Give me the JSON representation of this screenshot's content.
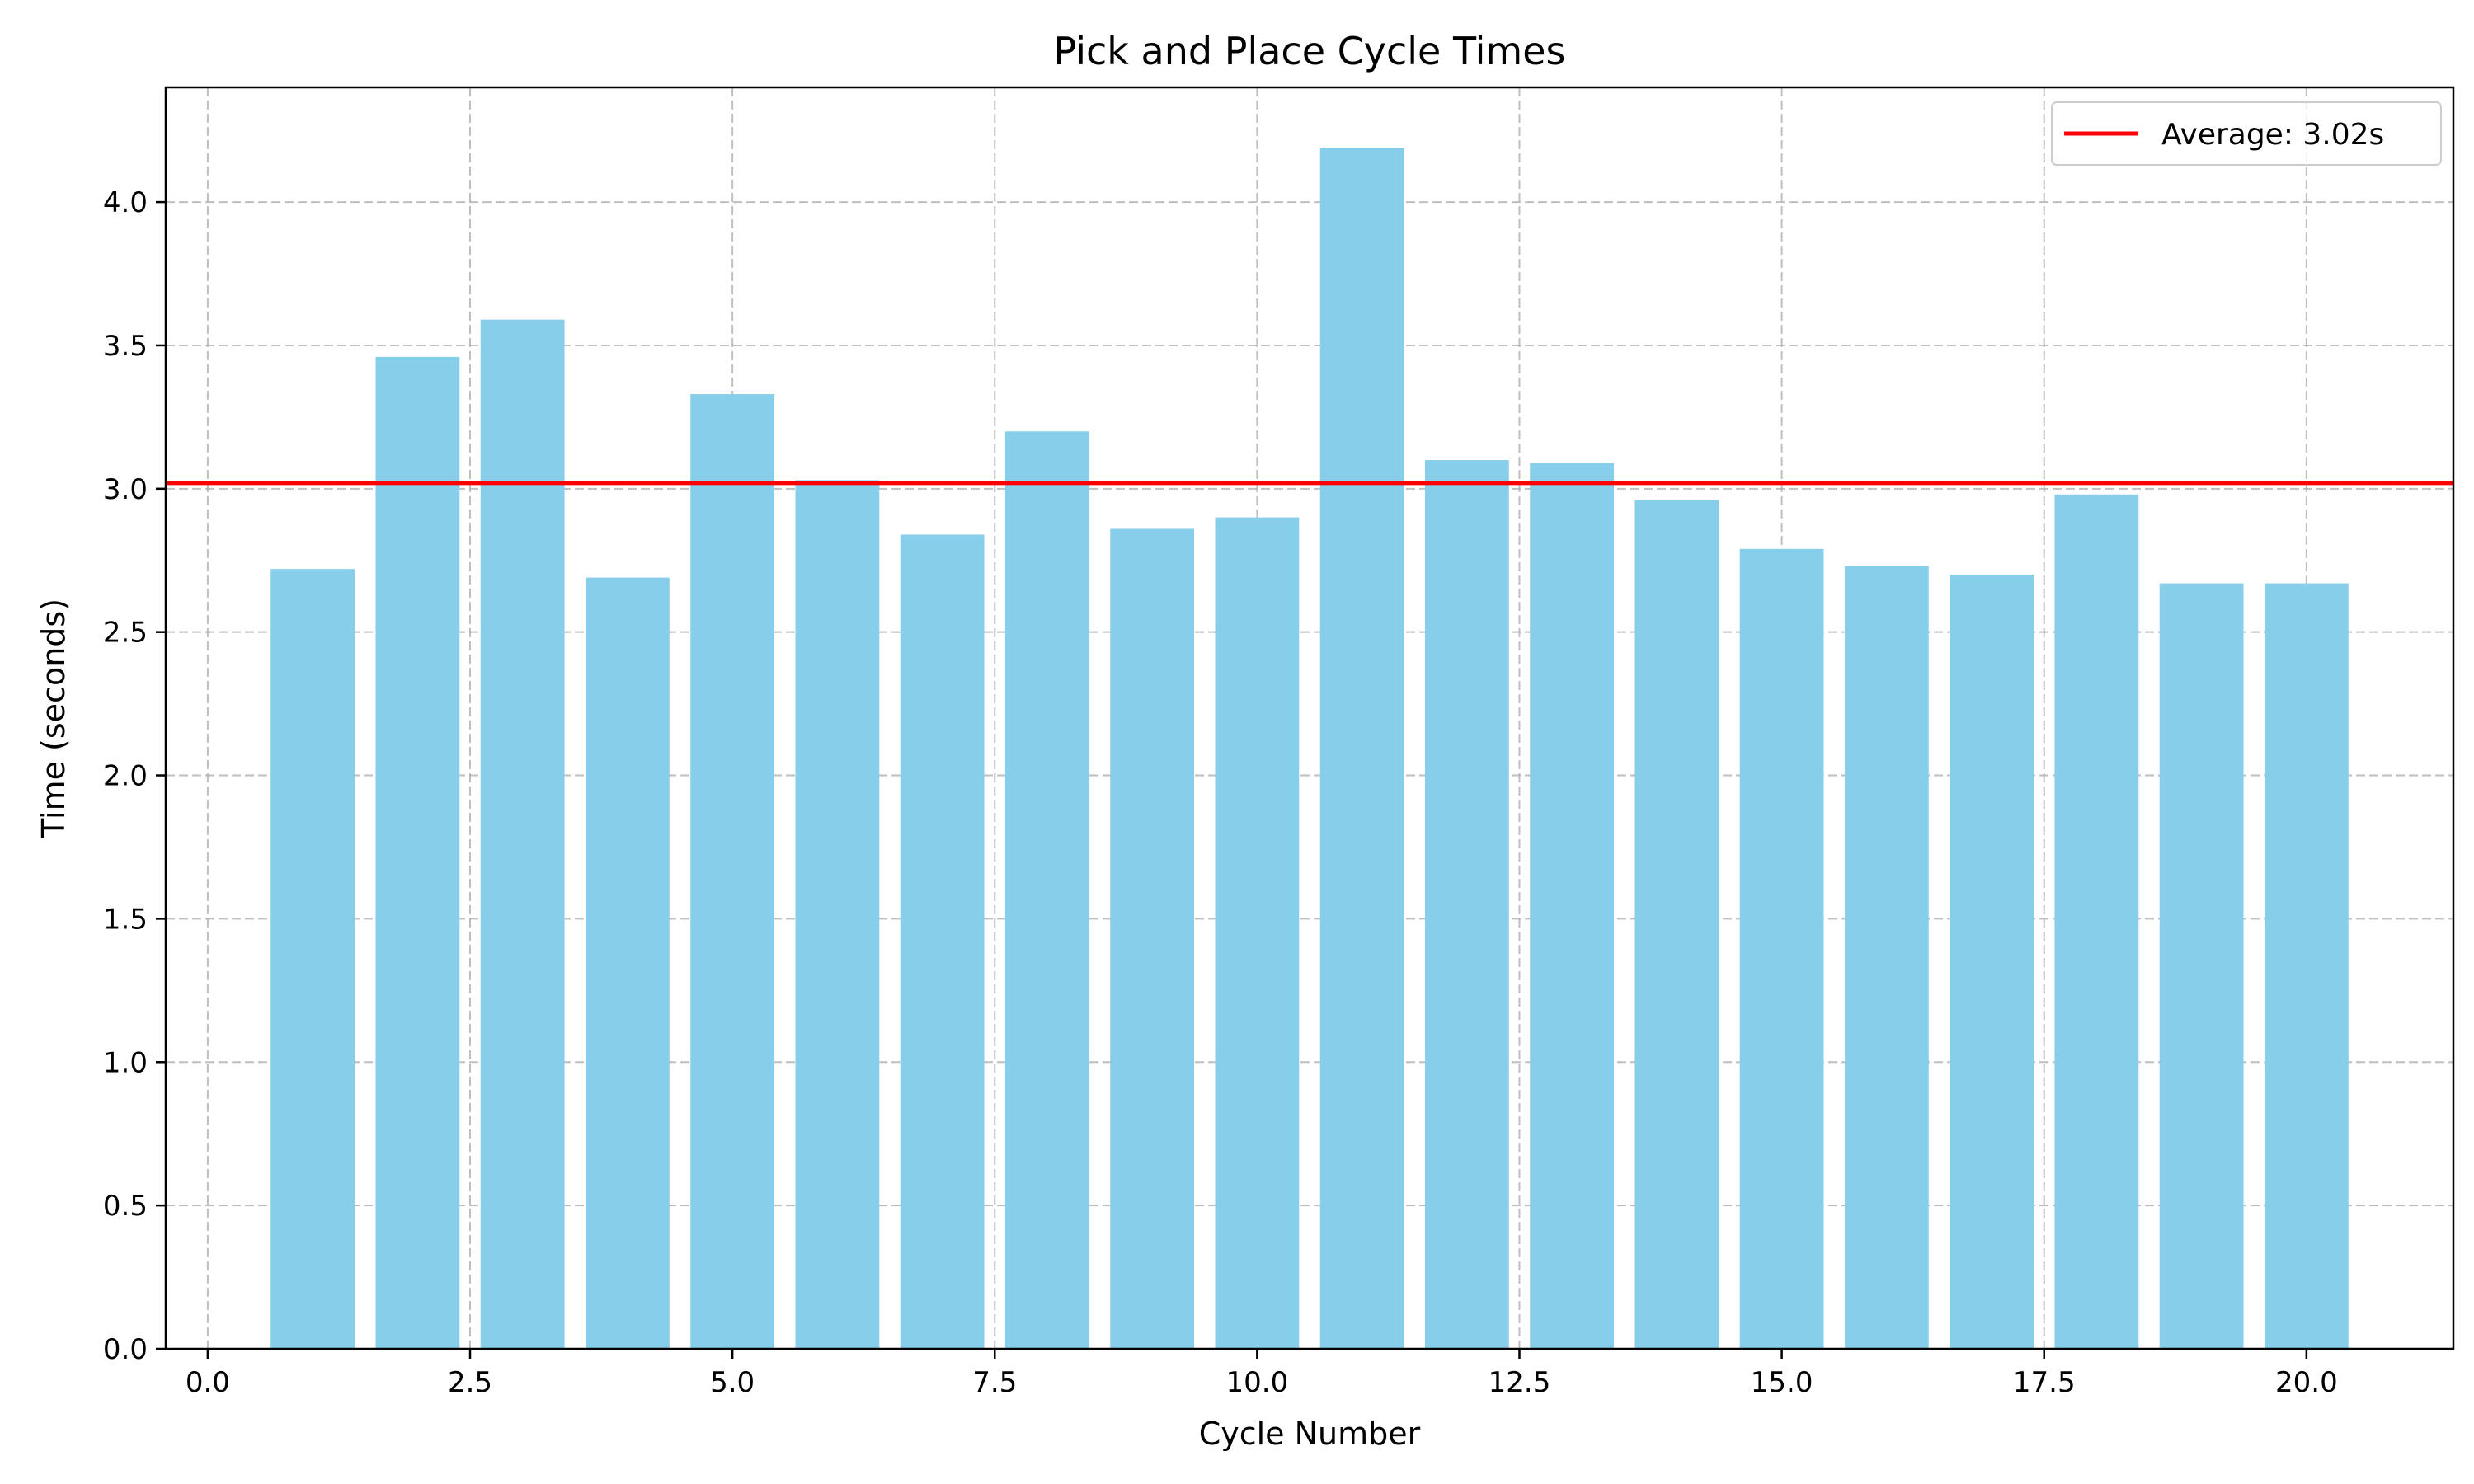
{
  "chart_data": {
    "type": "bar",
    "title": "Pick and Place Cycle Times",
    "xlabel": "Cycle Number",
    "ylabel": "Time (seconds)",
    "x": [
      1,
      2,
      3,
      4,
      5,
      6,
      7,
      8,
      9,
      10,
      11,
      12,
      13,
      14,
      15,
      16,
      17,
      18,
      19,
      20
    ],
    "values": [
      2.72,
      3.46,
      3.59,
      2.69,
      3.33,
      3.03,
      2.84,
      3.2,
      2.86,
      2.9,
      4.19,
      3.1,
      3.09,
      2.96,
      2.79,
      2.73,
      2.7,
      2.98,
      2.67,
      2.67
    ],
    "bar_color": "#87CEEB",
    "xlim": [
      -0.4,
      21.4
    ],
    "ylim": [
      0,
      4.4
    ],
    "xticks": [
      0,
      2.5,
      5,
      7.5,
      10,
      12.5,
      15,
      17.5,
      20
    ],
    "xtick_labels": [
      "0.0",
      "2.5",
      "5.0",
      "7.5",
      "10.0",
      "12.5",
      "15.0",
      "17.5",
      "20.0"
    ],
    "yticks": [
      0,
      0.5,
      1,
      1.5,
      2,
      2.5,
      3,
      3.5,
      4
    ],
    "ytick_labels": [
      "0.0",
      "0.5",
      "1.0",
      "1.5",
      "2.0",
      "2.5",
      "3.0",
      "3.5",
      "4.0"
    ],
    "grid": true,
    "average_line": {
      "value": 3.02,
      "color": "#ff0000",
      "label": "Average: 3.02s"
    },
    "legend_position": "top-right"
  }
}
